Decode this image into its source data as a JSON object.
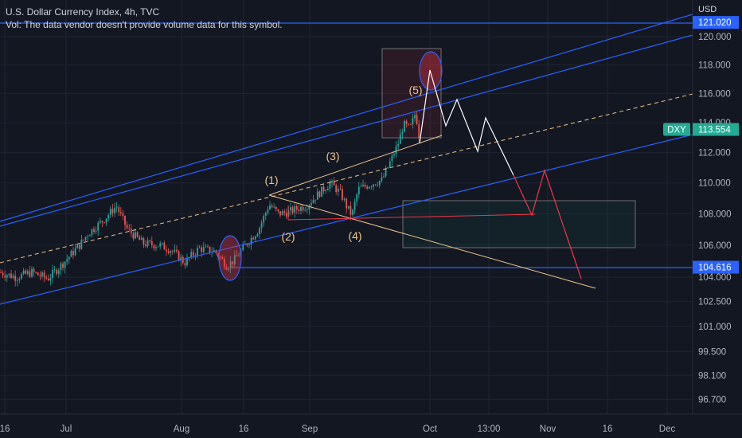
{
  "header": {
    "title": "U.S. Dollar Currency Index, 4h, TVC",
    "volume_note": "Vol: The data vendor doesn't provide volume data for this symbol."
  },
  "colors": {
    "background": "#131722",
    "grid": "#1f2433",
    "channel": "#2962ff",
    "candle_up": "#26a69a",
    "candle_down": "#ef5350",
    "projection_white": "#ffffff",
    "projection_red": "#f23645",
    "wedge": "#f0c58c",
    "badge_blue": "#2962ff",
    "badge_teal": "#22ab94"
  },
  "chart_data": {
    "type": "candlestick",
    "symbol": "DXY",
    "timeframe": "4h",
    "y_axis": {
      "unit": "USD",
      "ticks": [
        "120.000",
        "118.000",
        "116.000",
        "114.000",
        "112.000",
        "110.000",
        "108.000",
        "106.000",
        "104.000",
        "102.500",
        "101.000",
        "99.500",
        "98.100",
        "96.700"
      ],
      "scale": "log"
    },
    "x_axis": {
      "ticks": [
        "16",
        "Jul",
        "Aug",
        "16",
        "Sep",
        "Oct",
        "13:00",
        "Nov",
        "16",
        "Dec"
      ]
    },
    "price_badges": [
      {
        "label": "",
        "value": "121.020",
        "style": "blue"
      },
      {
        "label": "DXY",
        "value": "113.554",
        "style": "teal"
      },
      {
        "label": "",
        "value": "104.616",
        "style": "blue"
      }
    ],
    "annotations": {
      "wave_labels": [
        "(1)",
        "(2)",
        "(3)",
        "(4)",
        "(5)"
      ],
      "horizontal_levels": [
        121.02,
        104.616
      ],
      "projection_white": [
        118,
        114,
        116,
        112.4,
        114.4,
        111.4
      ],
      "projection_red": [
        111.4,
        107.9,
        110.8,
        104.2
      ],
      "target_zone": [
        105.8,
        108.9
      ],
      "top_zone": [
        113,
        119.4
      ]
    },
    "candles_summary": {
      "start_approx": 104.2,
      "end_approx": 113.6,
      "low_approx": 103.8,
      "high_approx": 114.8
    }
  }
}
